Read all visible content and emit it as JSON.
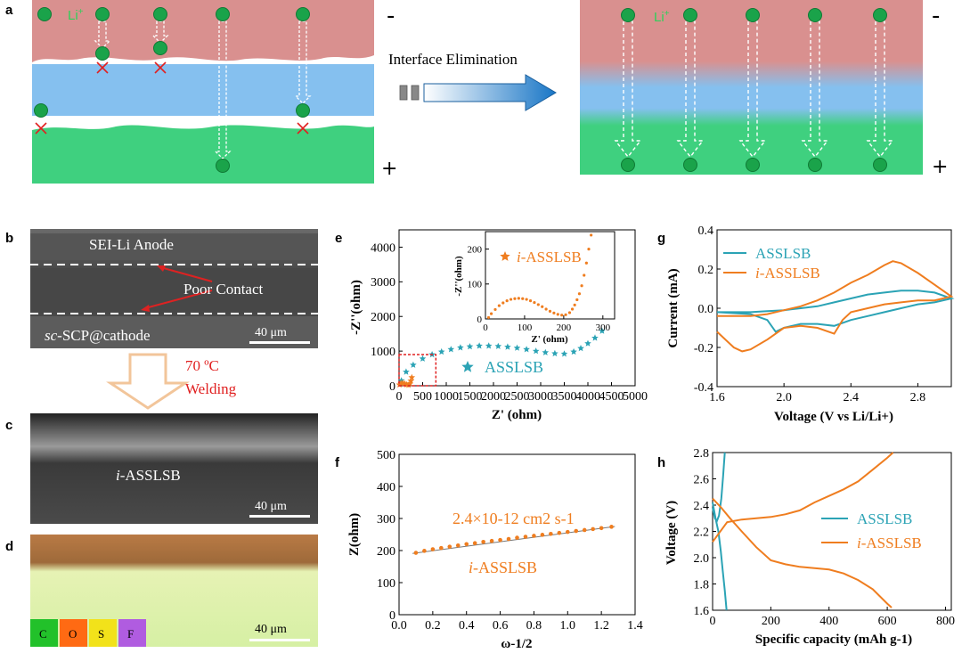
{
  "panel_labels": {
    "a": "a",
    "b": "b",
    "c": "c",
    "d": "d",
    "e": "e",
    "f": "f",
    "g": "g",
    "h": "h"
  },
  "panel_a": {
    "ion_label": "Li",
    "ion_charge": "+",
    "ion_label_right": "Li",
    "minus_sign": "-",
    "plus_sign": "+",
    "arrow_text": "Interface  Elimination",
    "colors": {
      "anode": "#d9908f",
      "electrolyte": "#85c0ef",
      "cathode": "#3fd07f",
      "ion": "#1aa34a"
    }
  },
  "panel_b": {
    "anode_label": "SEI-Li Anode",
    "contact_label": "Poor Contact",
    "cathode_prefix": "sc",
    "cathode_label": "-SCP@cathode",
    "scale_bar": "40 μm"
  },
  "welding": {
    "temperature": "70 ºC",
    "label": "Welding"
  },
  "panel_c": {
    "sample_prefix": "i",
    "sample_label": "-ASSLSB",
    "scale_bar": "40 μm"
  },
  "panel_d": {
    "scale_bar": "40 μm",
    "elements": [
      {
        "symbol": "C",
        "color": "#22c12a"
      },
      {
        "symbol": "O",
        "color": "#ff6a13"
      },
      {
        "symbol": "S",
        "color": "#f2e21a"
      },
      {
        "symbol": "F",
        "color": "#b05ce0"
      }
    ]
  },
  "chart_data": [
    {
      "panel": "e",
      "type": "scatter",
      "xlabel": "Z' (ohm)",
      "ylabel": "-Z''(ohm)",
      "xlim": [
        0,
        5000
      ],
      "ylim": [
        0,
        4500
      ],
      "xticks": [
        "0",
        "500",
        "1000",
        "1500",
        "2000",
        "2500",
        "3000",
        "3500",
        "4000",
        "4500",
        "5000"
      ],
      "yticks": [
        "0",
        "1000",
        "2000",
        "3000",
        "4000"
      ],
      "series": [
        {
          "name": "ASSLSB",
          "color": "#2ba3b5",
          "marker": "star",
          "x": [
            50,
            150,
            300,
            500,
            700,
            900,
            1100,
            1300,
            1500,
            1700,
            1900,
            2100,
            2300,
            2500,
            2700,
            2900,
            3100,
            3300,
            3500,
            3700,
            3850,
            4000,
            4150,
            4300
          ],
          "y": [
            150,
            400,
            600,
            780,
            900,
            980,
            1050,
            1100,
            1130,
            1150,
            1150,
            1140,
            1120,
            1090,
            1050,
            1000,
            960,
            930,
            920,
            980,
            1080,
            1220,
            1380,
            1580
          ]
        },
        {
          "name": "i-ASSLSB",
          "prefix": "i",
          "suffix": "-ASSLSB",
          "color": "#ef7d1f",
          "marker": "star",
          "x": [
            10,
            40,
            80,
            120,
            160,
            200,
            230,
            250,
            270
          ],
          "y": [
            30,
            70,
            80,
            60,
            30,
            20,
            60,
            140,
            240
          ]
        }
      ],
      "inset": {
        "xlabel": "Z' (ohm)",
        "ylabel": "-Z''(ohm)",
        "xlim": [
          0,
          330
        ],
        "ylim": [
          0,
          250
        ],
        "xticks": [
          "0",
          "100",
          "200",
          "300"
        ],
        "yticks": [
          "0",
          "100",
          "200"
        ],
        "legend_prefix": "i",
        "legend_label": "-ASSLSB",
        "x": [
          8,
          15,
          25,
          35,
          45,
          55,
          65,
          75,
          85,
          95,
          105,
          115,
          125,
          135,
          145,
          155,
          165,
          175,
          185,
          195,
          205,
          215,
          222,
          228,
          234,
          240,
          246,
          252,
          258,
          264,
          270
        ],
        "y": [
          4,
          15,
          27,
          38,
          46,
          52,
          56,
          58,
          59,
          58,
          56,
          52,
          47,
          41,
          35,
          28,
          22,
          17,
          13,
          11,
          12,
          18,
          28,
          40,
          55,
          72,
          95,
          125,
          160,
          200,
          240
        ]
      }
    },
    {
      "panel": "f",
      "type": "scatter",
      "xlabel": "ω-1/2",
      "ylabel": "Z(ohm)",
      "xlim": [
        0,
        1.4
      ],
      "ylim": [
        0,
        500
      ],
      "xticks": [
        "0.0",
        "0.2",
        "0.4",
        "0.6",
        "0.8",
        "1.0",
        "1.2",
        "1.4"
      ],
      "yticks": [
        "0",
        "100",
        "200",
        "300",
        "400",
        "500"
      ],
      "annotation": "2.4×10-12 cm2 s-1",
      "series": [
        {
          "name": "i-ASSLSB",
          "prefix": "i",
          "suffix": "-ASSLSB",
          "color": "#ef7d1f",
          "x": [
            0.1,
            0.15,
            0.2,
            0.25,
            0.3,
            0.35,
            0.4,
            0.45,
            0.5,
            0.55,
            0.6,
            0.65,
            0.7,
            0.75,
            0.8,
            0.85,
            0.9,
            0.95,
            1.0,
            1.05,
            1.1,
            1.15,
            1.2,
            1.26
          ],
          "y": [
            193,
            199,
            204,
            208,
            212,
            216,
            220,
            223,
            227,
            230,
            233,
            236,
            240,
            243,
            246,
            249,
            252,
            255,
            258,
            261,
            264,
            267,
            270,
            274
          ]
        }
      ]
    },
    {
      "panel": "g",
      "type": "line",
      "xlabel": "Voltage (V vs Li/Li+)",
      "ylabel": "Current (mA)",
      "xlim": [
        1.6,
        3.0
      ],
      "ylim": [
        -0.4,
        0.4
      ],
      "xticks": [
        "1.6",
        "2.0",
        "2.4",
        "2.8"
      ],
      "yticks": [
        "-0.4",
        "-0.2",
        "0.0",
        "0.2",
        "0.4"
      ],
      "series": [
        {
          "name": "ASSLSB",
          "color": "#2ba3b5",
          "x": [
            1.6,
            1.7,
            1.8,
            1.9,
            1.95,
            2.0,
            2.1,
            2.2,
            2.3,
            2.4,
            2.5,
            2.6,
            2.7,
            2.8,
            2.9,
            3.0,
            2.9,
            2.8,
            2.7,
            2.6,
            2.5,
            2.4,
            2.3,
            2.2,
            2.1,
            2.0,
            1.9,
            1.8,
            1.7,
            1.6
          ],
          "y": [
            -0.02,
            -0.025,
            -0.03,
            -0.06,
            -0.12,
            -0.1,
            -0.08,
            -0.08,
            -0.09,
            -0.06,
            -0.04,
            -0.02,
            0.0,
            0.02,
            0.03,
            0.05,
            0.08,
            0.09,
            0.09,
            0.08,
            0.07,
            0.05,
            0.03,
            0.01,
            0.0,
            -0.01,
            -0.015,
            -0.02,
            -0.02,
            -0.02
          ]
        },
        {
          "name": "i-ASSLSB",
          "prefix": "i",
          "suffix": "-ASSLSB",
          "color": "#ef7d1f",
          "x": [
            1.6,
            1.7,
            1.75,
            1.8,
            1.9,
            2.0,
            2.1,
            2.2,
            2.3,
            2.35,
            2.4,
            2.5,
            2.6,
            2.7,
            2.8,
            2.9,
            3.0,
            2.9,
            2.8,
            2.7,
            2.65,
            2.6,
            2.5,
            2.4,
            2.3,
            2.2,
            2.1,
            2.0,
            1.9,
            1.8,
            1.7,
            1.6
          ],
          "y": [
            -0.12,
            -0.2,
            -0.22,
            -0.21,
            -0.16,
            -0.1,
            -0.09,
            -0.1,
            -0.13,
            -0.06,
            -0.02,
            0.0,
            0.02,
            0.03,
            0.04,
            0.04,
            0.06,
            0.12,
            0.18,
            0.23,
            0.24,
            0.22,
            0.17,
            0.13,
            0.08,
            0.04,
            0.01,
            -0.01,
            -0.03,
            -0.04,
            -0.04,
            -0.04
          ]
        }
      ]
    },
    {
      "panel": "h",
      "type": "line",
      "xlabel": "Specific capacity (mAh g-1)",
      "ylabel": "Voltage (V)",
      "xlim": [
        0,
        820
      ],
      "ylim": [
        1.6,
        2.8
      ],
      "xticks": [
        "0",
        "200",
        "400",
        "600",
        "800"
      ],
      "yticks": [
        "1.6",
        "1.8",
        "2.0",
        "2.2",
        "2.4",
        "2.6",
        "2.8"
      ],
      "series": [
        {
          "name": "ASSLSB",
          "color": "#2ba3b5",
          "charge_x": [
            0,
            8,
            15,
            22,
            30,
            36,
            42
          ],
          "charge_y": [
            2.38,
            2.3,
            2.28,
            2.32,
            2.45,
            2.62,
            2.8
          ],
          "discharge_x": [
            0,
            10,
            20,
            28,
            35,
            42,
            48
          ],
          "discharge_y": [
            2.42,
            2.3,
            2.2,
            2.05,
            1.9,
            1.75,
            1.6
          ]
        },
        {
          "name": "i-ASSLSB",
          "prefix": "i",
          "suffix": "-ASSLSB",
          "color": "#ef7d1f",
          "charge_x": [
            0,
            50,
            100,
            150,
            200,
            250,
            300,
            350,
            400,
            450,
            500,
            550,
            600,
            620
          ],
          "charge_y": [
            2.12,
            2.27,
            2.29,
            2.3,
            2.31,
            2.33,
            2.36,
            2.42,
            2.47,
            2.52,
            2.58,
            2.67,
            2.76,
            2.8
          ],
          "discharge_x": [
            0,
            30,
            60,
            100,
            150,
            200,
            250,
            300,
            350,
            400,
            450,
            500,
            550,
            600,
            615
          ],
          "discharge_y": [
            2.45,
            2.38,
            2.3,
            2.2,
            2.08,
            1.98,
            1.95,
            1.93,
            1.92,
            1.91,
            1.88,
            1.83,
            1.76,
            1.65,
            1.62
          ]
        }
      ]
    }
  ]
}
